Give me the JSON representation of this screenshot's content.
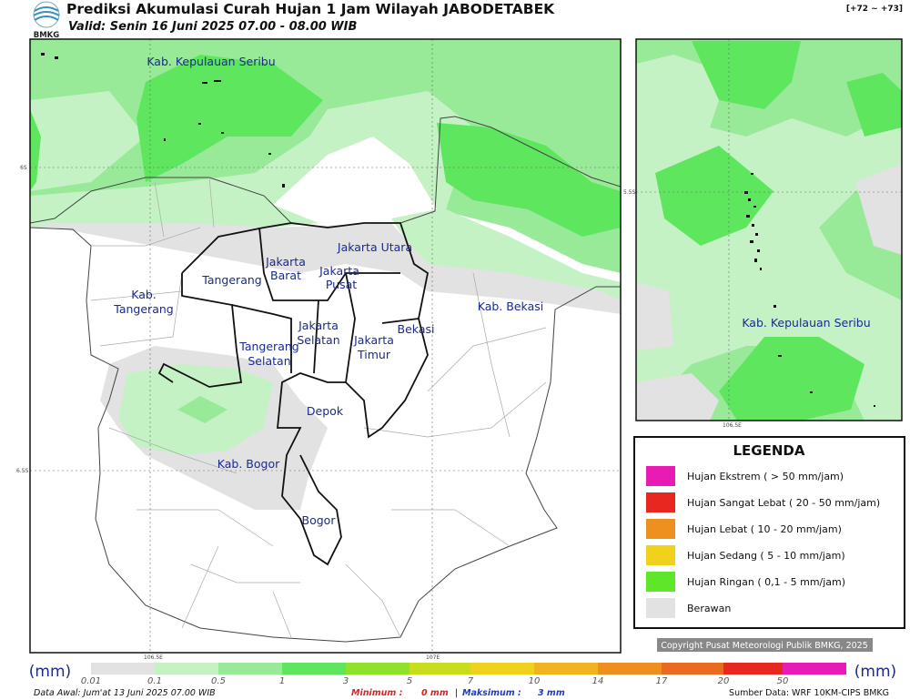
{
  "header": {
    "title": "Prediksi Akumulasi Curah Hujan 1 Jam Wilayah JABODETABEK",
    "valid": "Valid: Senin 16 Juni 2025 07.00 - 08.00 WIB",
    "forecast_hour": "[+72 ~ +73]",
    "logo": "BMKG"
  },
  "map": {
    "regions": [
      {
        "lines": [
          "Kab. Kepulauan Seribu"
        ]
      },
      {
        "lines": [
          "Jakarta Utara"
        ]
      },
      {
        "lines": [
          "Jakarta",
          "Barat"
        ]
      },
      {
        "lines": [
          "Jakarta",
          "Pusat"
        ]
      },
      {
        "lines": [
          "Tangerang"
        ]
      },
      {
        "lines": [
          "Kab.",
          "Tangerang"
        ]
      },
      {
        "lines": [
          "Jakarta",
          "Selatan"
        ]
      },
      {
        "lines": [
          "Jakarta",
          "Timur"
        ]
      },
      {
        "lines": [
          "Bekasi"
        ]
      },
      {
        "lines": [
          "Kab. Bekasi"
        ]
      },
      {
        "lines": [
          "Tangerang",
          "Selatan"
        ]
      },
      {
        "lines": [
          "Depok"
        ]
      },
      {
        "lines": [
          "Kab. Bogor"
        ]
      },
      {
        "lines": [
          "Bogor"
        ]
      }
    ],
    "lat_labels": [
      "6S",
      "6.5S"
    ],
    "lon_labels": [
      "106.5E",
      "107E"
    ]
  },
  "inset": {
    "region": "Kab. Kepulauan Seribu",
    "lat_label": "5.5S",
    "lon_label": "106.5E"
  },
  "legend": {
    "title": "LEGENDA",
    "items": [
      "Hujan Ekstrem ( > 50 mm/jam)",
      "Hujan Sangat Lebat ( 20 - 50 mm/jam)",
      "Hujan Lebat ( 10 - 20 mm/jam)",
      "Hujan Sedang ( 5 - 10 mm/jam)",
      "Hujan Ringan ( 0,1 - 5 mm/jam)",
      "Berawan"
    ]
  },
  "copyright": "Copyright Pusat Meteorologi Publik BMKG, 2025",
  "colorbar": {
    "unit": "(mm)",
    "labels": [
      "0.01",
      "0.1",
      "0.5",
      "1",
      "3",
      "5",
      "7",
      "10",
      "14",
      "17",
      "20",
      "50"
    ]
  },
  "footer": {
    "data_awal": "Data Awal: Jum'at 13 Juni 2025 07.00 WIB",
    "minimum_label": "Minimum :",
    "minimum": "0 mm",
    "separator": "|",
    "maximum_label": "Maksimum :",
    "maximum": "3 mm",
    "source": "Sumber Data: WRF 10KM-CIPS BMKG"
  }
}
